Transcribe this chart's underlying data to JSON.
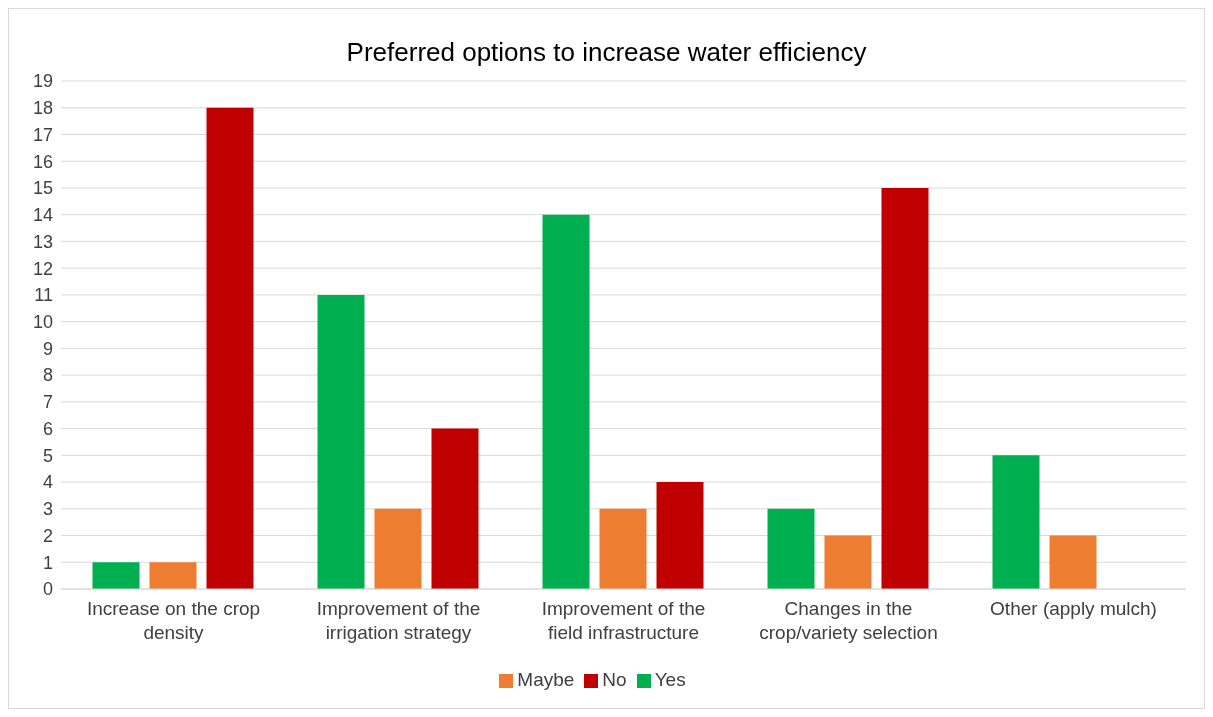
{
  "chart_data": {
    "type": "bar",
    "title": "Preferred options to increase water efficiency",
    "categories": [
      "Increase on the crop density",
      "Improvement of the irrigation strategy",
      "Improvement of the field infrastructure",
      "Changes in the crop/variety selection",
      "Other (apply mulch)"
    ],
    "series": [
      {
        "name": "Yes",
        "color": "#00b050",
        "values": [
          1,
          11,
          14,
          3,
          5
        ]
      },
      {
        "name": "Maybe",
        "color": "#ed7d31",
        "values": [
          1,
          3,
          3,
          2,
          2
        ]
      },
      {
        "name": "No",
        "color": "#c00000",
        "values": [
          18,
          6,
          4,
          15,
          0
        ]
      }
    ],
    "ylim": [
      0,
      19
    ],
    "yticks": [
      0,
      1,
      2,
      3,
      4,
      5,
      6,
      7,
      8,
      9,
      10,
      11,
      12,
      13,
      14,
      15,
      16,
      17,
      18,
      19
    ],
    "grid": "y",
    "legend": "bottom"
  }
}
